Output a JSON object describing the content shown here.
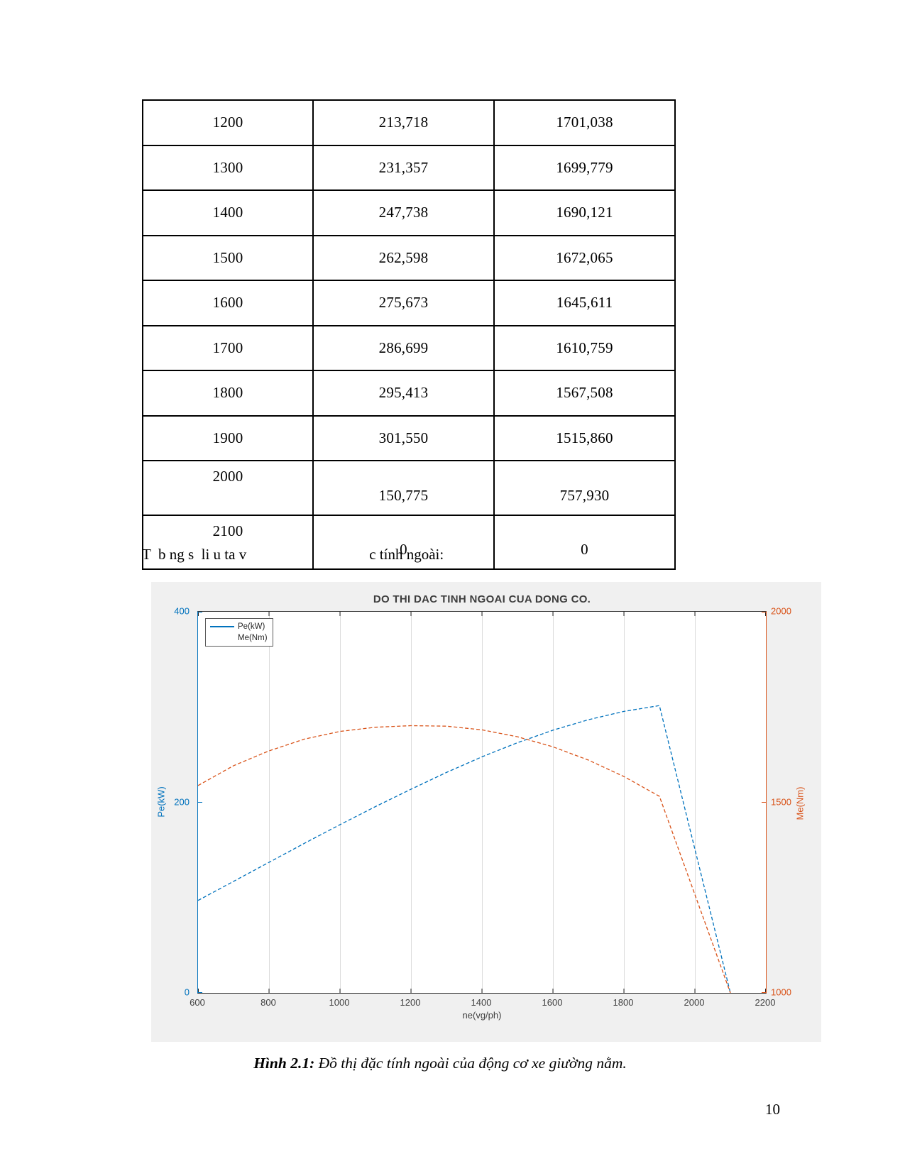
{
  "table": {
    "rows": [
      [
        "1200",
        "213,718",
        "1701,038"
      ],
      [
        "1300",
        "231,357",
        "1699,779"
      ],
      [
        "1400",
        "247,738",
        "1690,121"
      ],
      [
        "1500",
        "262,598",
        "1672,065"
      ],
      [
        "1600",
        "275,673",
        "1645,611"
      ],
      [
        "1700",
        "286,699",
        "1610,759"
      ],
      [
        "1800",
        "295,413",
        "1567,508"
      ],
      [
        "1900",
        "301,550",
        "1515,860"
      ],
      [
        "2000",
        "150,775",
        "757,930"
      ],
      [
        "2100",
        "0",
        "0"
      ]
    ]
  },
  "note": {
    "left": "T  b ng s  li u ta v",
    "right": "c tính ngoài:"
  },
  "figure": {
    "title": "DO THI DAC TINH NGOAI CUA DONG CO.",
    "x_label": "ne(vg/ph)",
    "y_left_label": "Pe(kW)",
    "y_right_label": "Me(Nm)",
    "legend": [
      "Pe(kW)",
      "Me(Nm)"
    ],
    "x_ticks": [
      "600",
      "800",
      "1000",
      "1200",
      "1400",
      "1600",
      "1800",
      "2000",
      "2200"
    ],
    "y_left_ticks": [
      "400",
      "200",
      "0"
    ],
    "y_right_ticks": [
      "2000",
      "1500",
      "1000"
    ],
    "colors": {
      "left_axis": "#0072BD",
      "right_axis": "#D95319",
      "panel_bg": "#f0f0f0",
      "grid": "#dcdcdc",
      "axis_dark": "#262626"
    }
  },
  "chart_data": {
    "type": "line",
    "title": "DO THI DAC TINH NGOAI CUA DONG CO.",
    "xlabel": "ne(vg/ph)",
    "ylabel_left": "Pe(kW)",
    "ylabel_right": "Me(Nm)",
    "xlim": [
      600,
      2200
    ],
    "ylim_left": [
      0,
      400
    ],
    "ylim_right": [
      1000,
      2000
    ],
    "x_ticks": [
      600,
      800,
      1000,
      1200,
      1400,
      1600,
      1800,
      2000,
      2200
    ],
    "grid": "vertical-only",
    "legend_position": "top-left",
    "x": [
      600,
      700,
      800,
      900,
      1000,
      1100,
      1200,
      1300,
      1400,
      1500,
      1600,
      1700,
      1800,
      1900,
      2000,
      2100
    ],
    "series": [
      {
        "name": "Pe(kW)",
        "axis": "left",
        "color": "#0072BD",
        "style": "dashed",
        "values": [
          97,
          117,
          137,
          157,
          176.5,
          195.5,
          213.718,
          231.357,
          247.738,
          262.598,
          275.673,
          286.699,
          295.413,
          301.55,
          150.775,
          0
        ]
      },
      {
        "name": "Me(Nm)",
        "axis": "right",
        "color": "#D95319",
        "style": "dashed",
        "values": [
          1544,
          1596,
          1635,
          1666,
          1686,
          1697,
          1701.038,
          1699.779,
          1690.121,
          1672.065,
          1645.611,
          1610.759,
          1567.508,
          1515.86,
          757.93,
          0
        ]
      }
    ]
  },
  "caption": {
    "label": "Hình 2.1:",
    "text": " Đồ thị đặc tính ngoài của động cơ xe giường nằm."
  },
  "page_number": "10"
}
